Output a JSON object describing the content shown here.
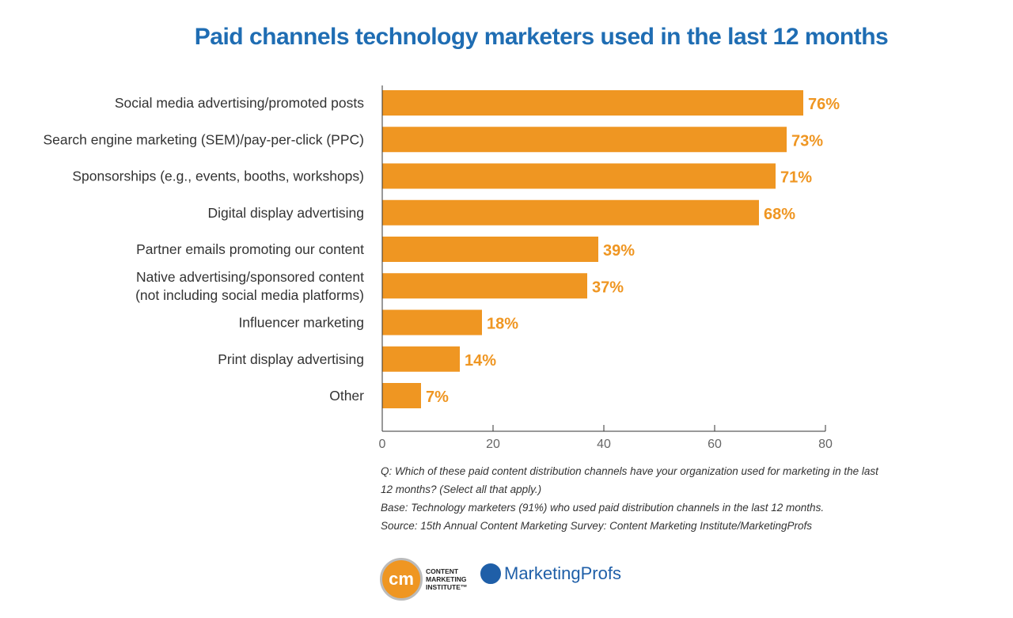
{
  "chart_data": {
    "type": "bar",
    "orientation": "horizontal",
    "title": "Paid channels technology marketers used in the last 12 months",
    "categories": [
      [
        "Social media advertising/promoted posts"
      ],
      [
        "Search engine marketing (SEM)/pay-per-click (PPC)"
      ],
      [
        "Sponsorships (e.g., events, booths, workshops)"
      ],
      [
        "Digital display advertising"
      ],
      [
        "Partner emails promoting our content"
      ],
      [
        "Native advertising/sponsored content",
        "(not including social media platforms)"
      ],
      [
        "Influencer marketing"
      ],
      [
        "Print display advertising"
      ],
      [
        "Other"
      ]
    ],
    "values": [
      76,
      73,
      71,
      68,
      39,
      37,
      18,
      14,
      7
    ],
    "value_labels": [
      "76%",
      "73%",
      "71%",
      "68%",
      "39%",
      "37%",
      "18%",
      "14%",
      "7%"
    ],
    "xlim": [
      0,
      80
    ],
    "xticks": [
      "0",
      "20",
      "40",
      "60",
      "80"
    ],
    "grid": false,
    "bar_color": "#ef9622",
    "title_color": "#1f6db3"
  },
  "notes": [
    "Q: Which of these paid content distribution channels have your organization used for marketing in the last 12 months? (Select all that apply.)",
    "Base: Technology marketers (91%) who used paid distribution channels in the last 12 months.",
    "Source: 15th Annual Content Marketing Survey: Content Marketing Institute/MarketingProfs"
  ],
  "logos": {
    "cmi": "cm",
    "cmi_text": [
      "CONTENT",
      "MARKETING",
      "INSTITUTE™"
    ],
    "mp": "MarketingProfs"
  }
}
